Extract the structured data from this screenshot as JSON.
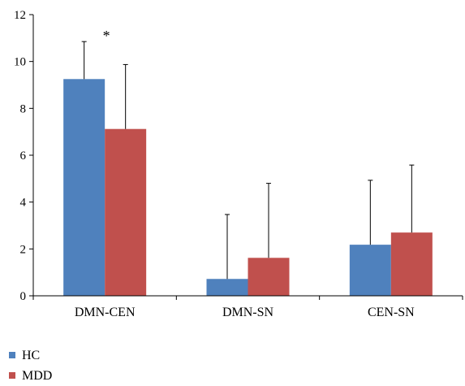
{
  "chart_data": {
    "type": "bar",
    "categories": [
      "DMN-CEN",
      "DMN-SN",
      "CEN-SN"
    ],
    "series": [
      {
        "name": "HC",
        "values": [
          9.25,
          0.72,
          2.18
        ],
        "error": [
          1.6,
          2.75,
          2.75
        ],
        "color": "#4f81bd"
      },
      {
        "name": "MDD",
        "values": [
          7.12,
          1.62,
          2.7
        ],
        "error": [
          2.75,
          3.18,
          2.88
        ],
        "color": "#c0504d"
      }
    ],
    "ylim": [
      0,
      12
    ],
    "yticks": [
      0,
      2,
      4,
      6,
      8,
      10,
      12
    ],
    "annotations": [
      {
        "category": "DMN-CEN",
        "text": "*"
      }
    ],
    "legend_position": "bottom-left",
    "grid": false
  }
}
